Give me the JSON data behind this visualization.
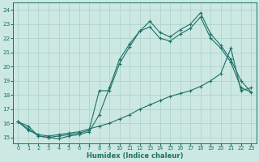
{
  "xlabel": "Humidex (Indice chaleur)",
  "background_color": "#cce8e2",
  "grid_color": "#aacfc8",
  "line_color": "#1e7068",
  "xlim": [
    -0.5,
    23.5
  ],
  "ylim": [
    14.6,
    24.5
  ],
  "xticks": [
    0,
    1,
    2,
    3,
    4,
    5,
    6,
    7,
    8,
    9,
    10,
    11,
    12,
    13,
    14,
    15,
    16,
    17,
    18,
    19,
    20,
    21,
    22,
    23
  ],
  "yticks": [
    15,
    16,
    17,
    18,
    19,
    20,
    21,
    22,
    23,
    24
  ],
  "line1_x": [
    0,
    1,
    2,
    3,
    4,
    5,
    6,
    7,
    8,
    9,
    10,
    11,
    12,
    13,
    14,
    15,
    16,
    17,
    18,
    19,
    20,
    21,
    22,
    23
  ],
  "line1_y": [
    16.1,
    15.8,
    15.1,
    15.0,
    14.9,
    15.1,
    15.2,
    15.4,
    16.6,
    18.5,
    20.5,
    21.6,
    22.5,
    23.2,
    22.4,
    22.1,
    22.6,
    23.0,
    23.8,
    22.3,
    21.5,
    20.5,
    19.0,
    18.2
  ],
  "line2_x": [
    0,
    1,
    2,
    3,
    4,
    5,
    6,
    7,
    8,
    9,
    10,
    11,
    12,
    13,
    14,
    15,
    16,
    17,
    18,
    19,
    20,
    21,
    22,
    23
  ],
  "line2_y": [
    16.1,
    15.6,
    15.1,
    15.0,
    15.1,
    15.2,
    15.3,
    15.5,
    18.3,
    18.3,
    20.2,
    21.4,
    22.5,
    22.8,
    22.0,
    21.8,
    22.3,
    22.7,
    23.5,
    22.0,
    21.3,
    20.3,
    18.5,
    18.2
  ],
  "line3_x": [
    0,
    1,
    2,
    3,
    4,
    5,
    6,
    7,
    8,
    9,
    10,
    11,
    12,
    13,
    14,
    15,
    16,
    17,
    18,
    19,
    20,
    21,
    22,
    23
  ],
  "line3_y": [
    16.1,
    15.5,
    15.2,
    15.1,
    15.2,
    15.3,
    15.4,
    15.6,
    15.8,
    16.0,
    16.3,
    16.6,
    17.0,
    17.3,
    17.6,
    17.9,
    18.1,
    18.3,
    18.6,
    19.0,
    19.5,
    21.3,
    18.3,
    18.5
  ]
}
